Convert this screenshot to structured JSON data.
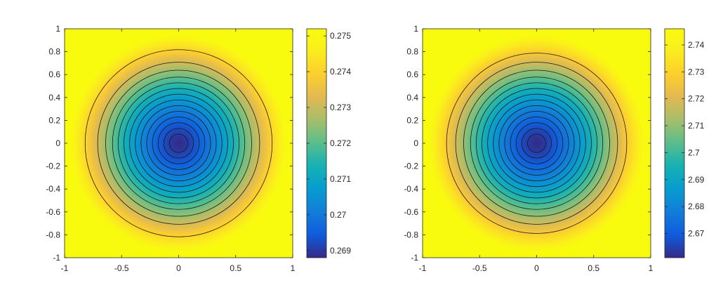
{
  "chart_data": [
    {
      "type": "heatmap",
      "subtype": "filled-contour-with-contour-lines",
      "x_range": [
        -1,
        1
      ],
      "y_range": [
        -1,
        1
      ],
      "x_ticks": [
        -1,
        -0.5,
        0,
        0.5,
        1
      ],
      "y_ticks": [
        1,
        0.8,
        0.6,
        0.4,
        0.2,
        0,
        -0.2,
        -0.4,
        -0.6,
        -0.8,
        -1
      ],
      "x_tick_labels": [
        "-1",
        "-0.5",
        "0",
        "0.5",
        "1"
      ],
      "y_tick_labels": [
        "1",
        "0.8",
        "0.6",
        "0.4",
        "0.2",
        "0",
        "-0.2",
        "-0.4",
        "-0.6",
        "-0.8",
        "-1"
      ],
      "field": "radially symmetric, minimum at center (0,0), increasing outward",
      "center_value": 0.2688,
      "edge_value": 0.2752,
      "contour_radii": [
        0.08,
        0.13,
        0.18,
        0.23,
        0.28,
        0.33,
        0.38,
        0.43,
        0.48,
        0.53,
        0.58,
        0.64,
        0.71,
        0.82
      ],
      "colorbar": {
        "colormap": "parula",
        "range": [
          0.2688,
          0.2752
        ],
        "ticks": [
          0.269,
          0.27,
          0.271,
          0.272,
          0.273,
          0.274,
          0.275
        ],
        "tick_labels": [
          "0.269",
          "0.27",
          "0.271",
          "0.272",
          "0.273",
          "0.274",
          "0.275"
        ]
      }
    },
    {
      "type": "heatmap",
      "subtype": "filled-contour-with-contour-lines",
      "x_range": [
        -1,
        1
      ],
      "y_range": [
        -1,
        1
      ],
      "x_ticks": [
        -1,
        -0.5,
        0,
        0.5,
        1
      ],
      "y_ticks": [
        1,
        0.8,
        0.6,
        0.4,
        0.2,
        0,
        -0.2,
        -0.4,
        -0.6,
        -0.8,
        -1
      ],
      "x_tick_labels": [
        "-1",
        "-0.5",
        "0",
        "0.5",
        "1"
      ],
      "y_tick_labels": [
        "1",
        "0.8",
        "0.6",
        "0.4",
        "0.2",
        "0",
        "-0.2",
        "-0.4",
        "-0.6",
        "-0.8",
        "-1"
      ],
      "field": "radially symmetric, minimum at center (0,0), increasing outward",
      "center_value": 2.661,
      "edge_value": 2.745,
      "contour_radii": [
        0.08,
        0.13,
        0.18,
        0.23,
        0.28,
        0.33,
        0.38,
        0.43,
        0.48,
        0.53,
        0.58,
        0.64,
        0.71,
        0.79
      ],
      "colorbar": {
        "colormap": "parula",
        "range": [
          2.661,
          2.746
        ],
        "ticks": [
          2.67,
          2.68,
          2.69,
          2.7,
          2.71,
          2.72,
          2.73,
          2.74
        ],
        "tick_labels": [
          "2.67",
          "2.68",
          "2.69",
          "2.7",
          "2.71",
          "2.72",
          "2.73",
          "2.74"
        ]
      }
    }
  ]
}
